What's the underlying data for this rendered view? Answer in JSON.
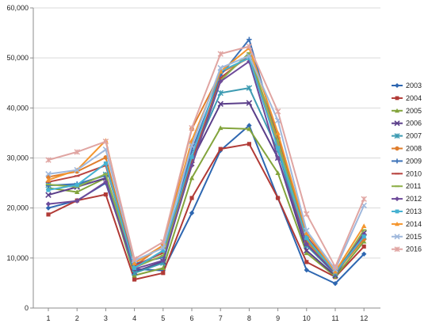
{
  "chart_data": {
    "type": "line",
    "title": "",
    "xlabel": "",
    "ylabel": "",
    "x": [
      "1",
      "2",
      "3",
      "4",
      "5",
      "6",
      "7",
      "8",
      "9",
      "10",
      "11",
      "12"
    ],
    "y_ticks": [
      "0",
      "10,000",
      "20,000",
      "30,000",
      "40,000",
      "50,000",
      "60,000"
    ],
    "ylim": [
      0,
      60000
    ],
    "grid": "horizontal",
    "legend_position": "right",
    "series": [
      {
        "name": "2003",
        "color": "#2e67b1",
        "marker": "diamond",
        "values": [
          20000,
          21500,
          25000,
          7800,
          7500,
          19000,
          31500,
          36500,
          22000,
          7600,
          4900,
          10800
        ]
      },
      {
        "name": "2004",
        "color": "#b13a36",
        "marker": "square",
        "values": [
          18700,
          21500,
          22700,
          5700,
          7000,
          22000,
          31800,
          32800,
          22000,
          9200,
          6200,
          12300
        ]
      },
      {
        "name": "2005",
        "color": "#83a43c",
        "marker": "triangle",
        "values": [
          24000,
          23200,
          26000,
          6500,
          8000,
          26000,
          36000,
          35800,
          27000,
          11000,
          6300,
          13300
        ]
      },
      {
        "name": "2006",
        "color": "#5b3f8a",
        "marker": "x",
        "values": [
          22600,
          24200,
          26000,
          7200,
          9300,
          29500,
          40800,
          41000,
          30000,
          11500,
          6500,
          15000
        ]
      },
      {
        "name": "2007",
        "color": "#3d9bb2",
        "marker": "asterisk",
        "values": [
          24600,
          24500,
          26700,
          7000,
          9000,
          30000,
          43000,
          44000,
          31500,
          12500,
          6800,
          14200
        ]
      },
      {
        "name": "2008",
        "color": "#df7d2c",
        "marker": "circle",
        "values": [
          26200,
          27300,
          30100,
          8400,
          12600,
          35800,
          47000,
          50000,
          32500,
          13300,
          7000,
          13800
        ]
      },
      {
        "name": "2009",
        "color": "#3e73b8",
        "marker": "plus",
        "values": [
          24500,
          24800,
          26500,
          8900,
          10100,
          31500,
          46500,
          53700,
          33700,
          14000,
          7000,
          14600
        ]
      },
      {
        "name": "2010",
        "color": "#b84440",
        "marker": "dash",
        "values": [
          25200,
          26400,
          28500,
          8500,
          11000,
          29300,
          46000,
          50500,
          34000,
          14300,
          7300,
          14700
        ]
      },
      {
        "name": "2011",
        "color": "#8fb04b",
        "marker": "dash",
        "values": [
          24700,
          24200,
          26800,
          8100,
          10500,
          28500,
          45500,
          51000,
          33500,
          13800,
          6700,
          15600
        ]
      },
      {
        "name": "2012",
        "color": "#6e4b9a",
        "marker": "diamond",
        "values": [
          20800,
          21400,
          25200,
          7800,
          9500,
          28500,
          45300,
          49300,
          30000,
          12800,
          6900,
          14800
        ]
      },
      {
        "name": "2013",
        "color": "#46b1d1",
        "marker": "square",
        "values": [
          23600,
          24600,
          28900,
          8000,
          11500,
          30200,
          47300,
          50000,
          32000,
          14000,
          7100,
          14300
        ]
      },
      {
        "name": "2014",
        "color": "#f4962e",
        "marker": "triangle",
        "values": [
          25600,
          27600,
          33500,
          9000,
          12500,
          33500,
          47300,
          52000,
          35000,
          15000,
          7300,
          16400
        ]
      },
      {
        "name": "2015",
        "color": "#9fb8dc",
        "marker": "x",
        "values": [
          26800,
          27600,
          31700,
          9500,
          12000,
          32500,
          48000,
          50400,
          37500,
          15500,
          7700,
          20500
        ]
      },
      {
        "name": "2016",
        "color": "#e0a5a2",
        "marker": "asterisk",
        "values": [
          29600,
          31200,
          33300,
          9800,
          13200,
          36000,
          50800,
          52300,
          39300,
          18800,
          8200,
          21800
        ]
      }
    ]
  }
}
